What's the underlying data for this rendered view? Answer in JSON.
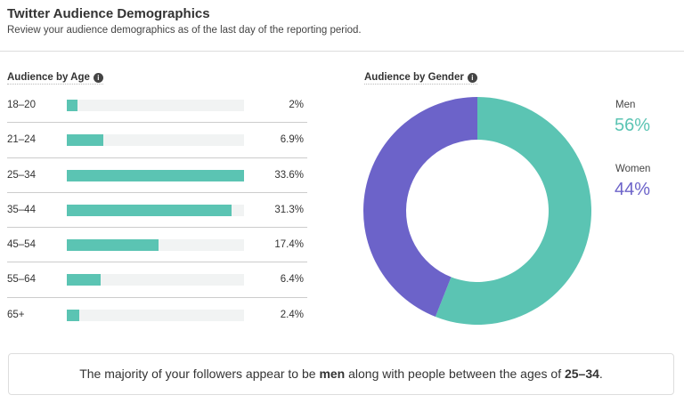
{
  "header": {
    "title": "Twitter Audience Demographics",
    "subtitle": "Review your audience demographics as of the last day of the reporting period."
  },
  "chart_data": [
    {
      "type": "bar",
      "title": "Audience by Age",
      "orientation": "horizontal",
      "categories": [
        "18–20",
        "21–24",
        "25–34",
        "35–44",
        "45–54",
        "55–64",
        "65+"
      ],
      "values": [
        2,
        6.9,
        33.6,
        31.3,
        17.4,
        6.4,
        2.4
      ],
      "value_labels": [
        "2%",
        "6.9%",
        "33.6%",
        "31.3%",
        "17.4%",
        "6.4%",
        "2.4%"
      ],
      "color": "#5bc4b3",
      "track_color": "#f1f3f3"
    },
    {
      "type": "pie",
      "subtype": "donut",
      "title": "Audience by Gender",
      "categories": [
        "Men",
        "Women"
      ],
      "values": [
        56,
        44
      ],
      "value_labels": [
        "56%",
        "44%"
      ],
      "colors": [
        "#5bc4b3",
        "#6c63c9"
      ],
      "legend": "right"
    }
  ],
  "summary": {
    "pre": "The majority of your followers appear to be ",
    "bold1": "men",
    "mid": " along with people between the ages of ",
    "bold2": "25–34",
    "post": "."
  },
  "icons": {
    "info": "info-icon"
  }
}
